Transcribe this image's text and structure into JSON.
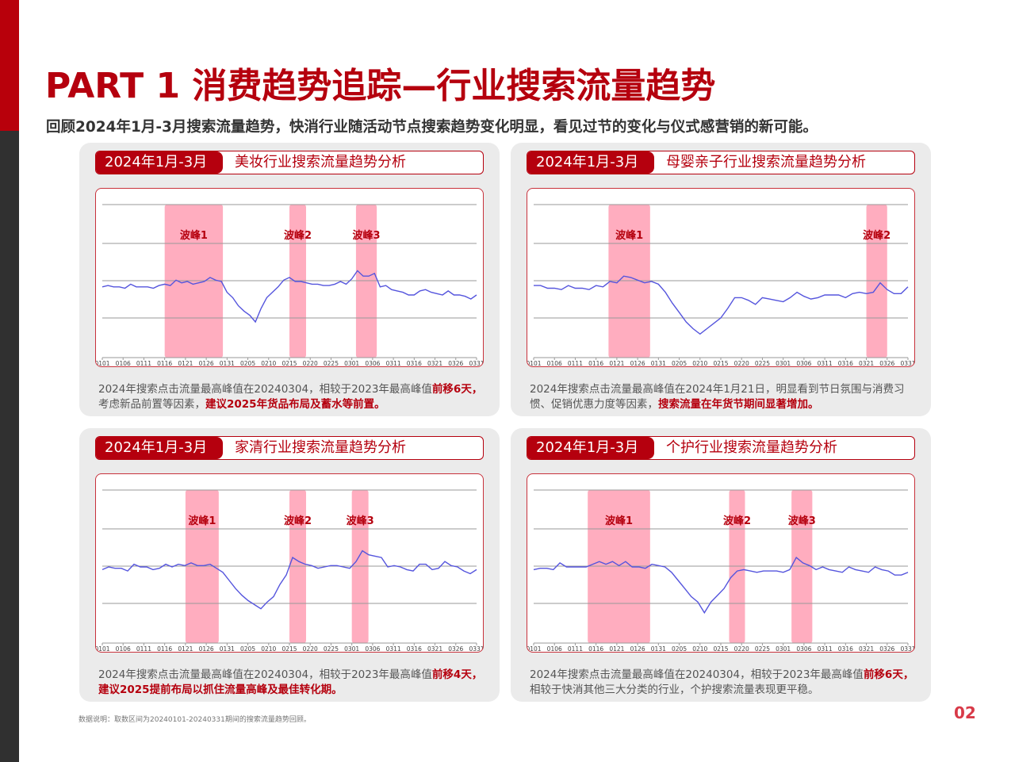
{
  "page": {
    "title": "PART 1  消费趋势追踪—行业搜索流量趋势",
    "subtitle": "回顾2024年1月-3月搜索流量趋势，快消行业随活动节点搜索趋势变化明显，看见过节的变化与仪式感营销的新可能。",
    "footnote": "数据说明：取数区间为20240101-20240331期间的搜索流量趋势回顾。",
    "page_number": "02",
    "colors": {
      "brand_red": "#b5000e",
      "sidebar_dark": "#303030",
      "band_pink": "#ffadbf",
      "line_blue": "#5555dd",
      "panel_bg": "#ebebeb"
    }
  },
  "panels": [
    {
      "period": "2024年1月-3月",
      "title": "美妆行业搜索流量趋势分析",
      "desc_plain1": "2024年搜索点击流量最高峰值在20240304，相较于2023年最高峰值",
      "desc_hl1": "前移6天，",
      "desc_plain2": "考虑新品前置等因素，",
      "desc_hl2": "建议2025年货品布局及蓄水等前置。"
    },
    {
      "period": "2024年1月-3月",
      "title": "母婴亲子行业搜索流量趋势分析",
      "desc_plain1": "2024年搜索点击流量最高峰值在2024年1月21日，明显看到节日氛围与消费习惯、促销优惠力度等因素，",
      "desc_hl1": "搜索流量在年货节期间显著增加。",
      "desc_plain2": "",
      "desc_hl2": ""
    },
    {
      "period": "2024年1月-3月",
      "title": "家清行业搜索流量趋势分析",
      "desc_plain1": "2024年搜索点击流量最高峰值在20240304，相较于2023年最高峰值",
      "desc_hl1": "前移4天，建议2025提前布局以抓住流量高峰及最佳转化期。",
      "desc_plain2": "",
      "desc_hl2": ""
    },
    {
      "period": "2024年1月-3月",
      "title": "个护行业搜索流量趋势分析",
      "desc_plain1": "2024年搜索点击流量最高峰值在20240304，相较于2023年最高峰值",
      "desc_hl1": "前移6天，",
      "desc_plain2": "相较于快消其他三大分类的行业，个护搜索流量表现更平稳。",
      "desc_hl2": ""
    }
  ],
  "chart_data": [
    {
      "type": "line",
      "title": "美妆行业搜索流量趋势分析",
      "x_ticks": [
        "0101",
        "0106",
        "0111",
        "0116",
        "0121",
        "0126",
        "0131",
        "0205",
        "0210",
        "0215",
        "0220",
        "0225",
        "0301",
        "0306",
        "0311",
        "0316",
        "0321",
        "0326",
        "0331"
      ],
      "ylim": [
        0,
        100
      ],
      "grid": true,
      "bands": [
        {
          "label": "波峰1",
          "start": "0116",
          "end": "0130"
        },
        {
          "label": "波峰2",
          "start": "0215",
          "end": "0219"
        },
        {
          "label": "波峰3",
          "start": "0302",
          "end": "0307"
        }
      ],
      "values": [
        36,
        37,
        36,
        36,
        35,
        38,
        36,
        36,
        36,
        35,
        37,
        38,
        37,
        41,
        39,
        40,
        38,
        39,
        40,
        43,
        41,
        40,
        32,
        28,
        22,
        18,
        15,
        10,
        20,
        28,
        32,
        36,
        41,
        43,
        40,
        40,
        39,
        38,
        38,
        37,
        37,
        38,
        40,
        38,
        42,
        48,
        44,
        44,
        46,
        36,
        37,
        34,
        33,
        32,
        30,
        30,
        33,
        34,
        32,
        31,
        30,
        33,
        30,
        30,
        29,
        27,
        30
      ],
      "peak": "0304"
    },
    {
      "type": "line",
      "title": "母婴亲子行业搜索流量趋势分析",
      "x_ticks": [
        "0101",
        "0106",
        "0111",
        "0116",
        "0121",
        "0126",
        "0131",
        "0205",
        "0210",
        "0215",
        "0220",
        "0225",
        "0301",
        "0306",
        "0311",
        "0316",
        "0321",
        "0326",
        "0331"
      ],
      "ylim": [
        0,
        100
      ],
      "grid": true,
      "bands": [
        {
          "label": "波峰1",
          "start": "0119",
          "end": "0129"
        },
        {
          "label": "波峰2",
          "start": "0321",
          "end": "0326"
        }
      ],
      "values": [
        37,
        37,
        35,
        35,
        34,
        37,
        35,
        35,
        34,
        37,
        36,
        40,
        39,
        44,
        43,
        41,
        39,
        40,
        38,
        32,
        24,
        17,
        10,
        5,
        1,
        5,
        9,
        13,
        20,
        28,
        28,
        26,
        23,
        28,
        27,
        26,
        25,
        28,
        32,
        29,
        27,
        28,
        30,
        30,
        30,
        28,
        31,
        32,
        31,
        32,
        39,
        34,
        31,
        31,
        36
      ],
      "peak": "0121"
    },
    {
      "type": "line",
      "title": "家清行业搜索流量趋势分析",
      "x_ticks": [
        "0101",
        "0106",
        "0111",
        "0116",
        "0121",
        "0126",
        "0131",
        "0205",
        "0210",
        "0215",
        "0220",
        "0225",
        "0301",
        "0306",
        "0311",
        "0316",
        "0321",
        "0326",
        "0331"
      ],
      "ylim": [
        0,
        100
      ],
      "grid": true,
      "bands": [
        {
          "label": "波峰1",
          "start": "0121",
          "end": "0129"
        },
        {
          "label": "波峰2",
          "start": "0215",
          "end": "0219"
        },
        {
          "label": "波峰3",
          "start": "0301",
          "end": "0305"
        }
      ],
      "values": [
        38,
        40,
        39,
        39,
        37,
        42,
        40,
        40,
        38,
        39,
        42,
        40,
        42,
        41,
        43,
        41,
        41,
        42,
        39,
        36,
        30,
        24,
        19,
        15,
        12,
        9,
        14,
        18,
        27,
        34,
        47,
        44,
        42,
        41,
        39,
        40,
        41,
        41,
        40,
        39,
        44,
        52,
        49,
        48,
        47,
        40,
        41,
        40,
        38,
        37,
        42,
        42,
        38,
        39,
        44,
        41,
        40,
        37,
        35,
        38
      ],
      "peak": "0304"
    },
    {
      "type": "line",
      "title": "个护行业搜索流量趋势分析",
      "x_ticks": [
        "0101",
        "0106",
        "0111",
        "0116",
        "0121",
        "0126",
        "0131",
        "0205",
        "0210",
        "0215",
        "0220",
        "0225",
        "0301",
        "0306",
        "0311",
        "0316",
        "0321",
        "0326",
        "0331"
      ],
      "ylim": [
        0,
        100
      ],
      "grid": true,
      "bands": [
        {
          "label": "波峰1",
          "start": "0114",
          "end": "0129"
        },
        {
          "label": "波峰2",
          "start": "0217",
          "end": "0220"
        },
        {
          "label": "波峰3",
          "start": "0303",
          "end": "0308"
        }
      ],
      "values": [
        38,
        39,
        39,
        38,
        43,
        40,
        40,
        40,
        40,
        42,
        44,
        42,
        44,
        41,
        44,
        40,
        40,
        39,
        42,
        41,
        40,
        36,
        30,
        24,
        18,
        14,
        6,
        14,
        19,
        24,
        32,
        37,
        38,
        37,
        36,
        37,
        37,
        37,
        36,
        38,
        47,
        43,
        41,
        38,
        40,
        38,
        37,
        36,
        40,
        38,
        37,
        36,
        40,
        38,
        37,
        34,
        34,
        36
      ],
      "peak": "0304"
    }
  ]
}
